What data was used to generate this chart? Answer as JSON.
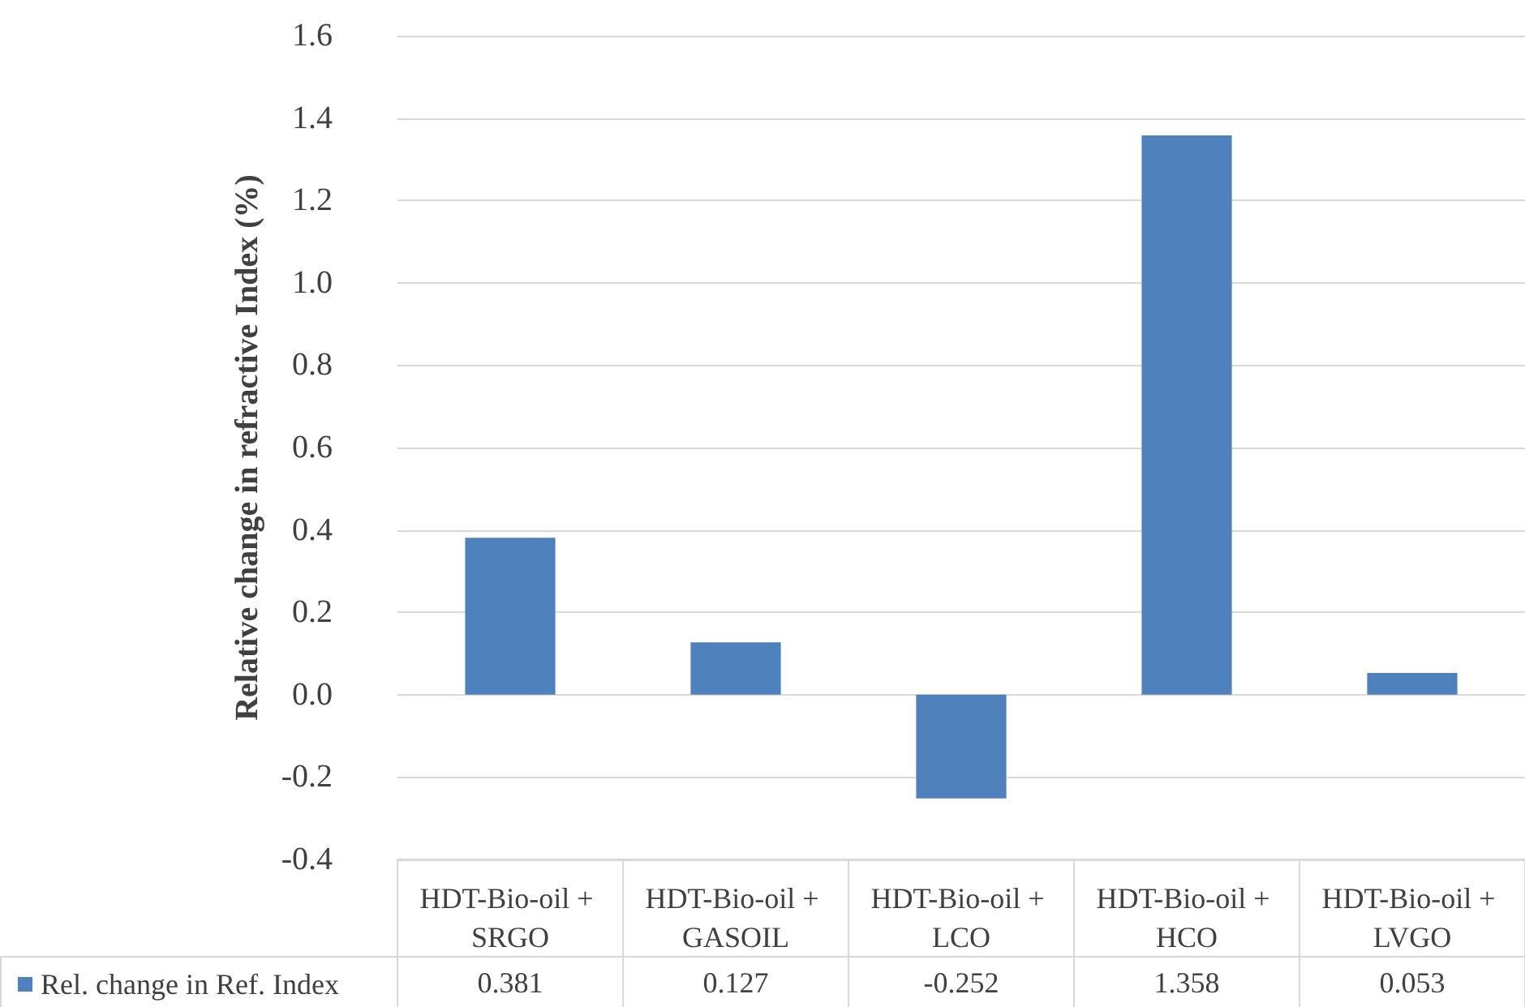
{
  "chart_data": {
    "type": "bar",
    "ylabel": "Relative change in refractive Index (%)",
    "categories": [
      "HDT-Bio-oil + SRGO",
      "HDT-Bio-oil + GASOIL",
      "HDT-Bio-oil + LCO",
      "HDT-Bio-oil + HCO",
      "HDT-Bio-oil + LVGO"
    ],
    "series": [
      {
        "name": "Rel. change in Ref. Index",
        "color": "#4f81bd",
        "values": [
          0.381,
          0.127,
          -0.252,
          1.358,
          0.053
        ]
      }
    ],
    "ylim": [
      -0.4,
      1.6
    ],
    "yticks": [
      -0.4,
      -0.2,
      {
        "value": 0,
        "label": "0.0"
      },
      0.2,
      0.4,
      0.6,
      0.8,
      {
        "value": 1,
        "label": "1.0"
      },
      1.2,
      1.4,
      1.6
    ],
    "grid": "y",
    "legend": "bottom left",
    "data_labels": true
  }
}
